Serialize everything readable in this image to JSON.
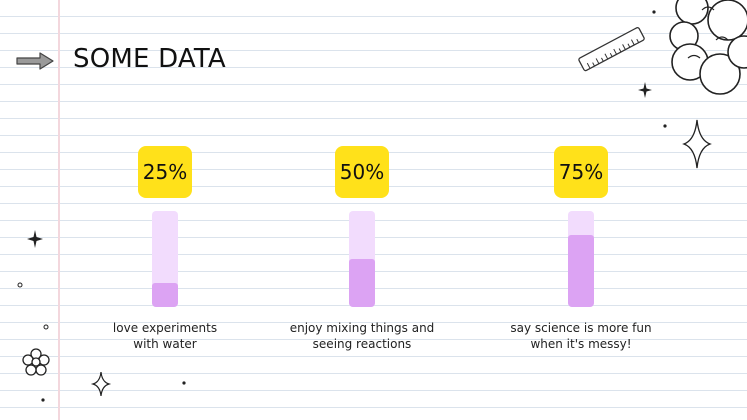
{
  "title": "SOME DATA",
  "colors": {
    "badge": "#ffe11a",
    "track": "#f2dcfd",
    "fill": "#dca3f3"
  },
  "chart_data": {
    "type": "bar",
    "orientation": "vertical",
    "ylim": [
      0,
      100
    ],
    "categories": [
      [
        "love experiments",
        "with water"
      ],
      [
        "enjoy mixing things and",
        "seeing reactions"
      ],
      [
        "say science is more fun",
        "when it's messy!"
      ]
    ],
    "values": [
      25,
      50,
      75
    ],
    "value_labels": [
      "25%",
      "50%",
      "75%"
    ]
  }
}
